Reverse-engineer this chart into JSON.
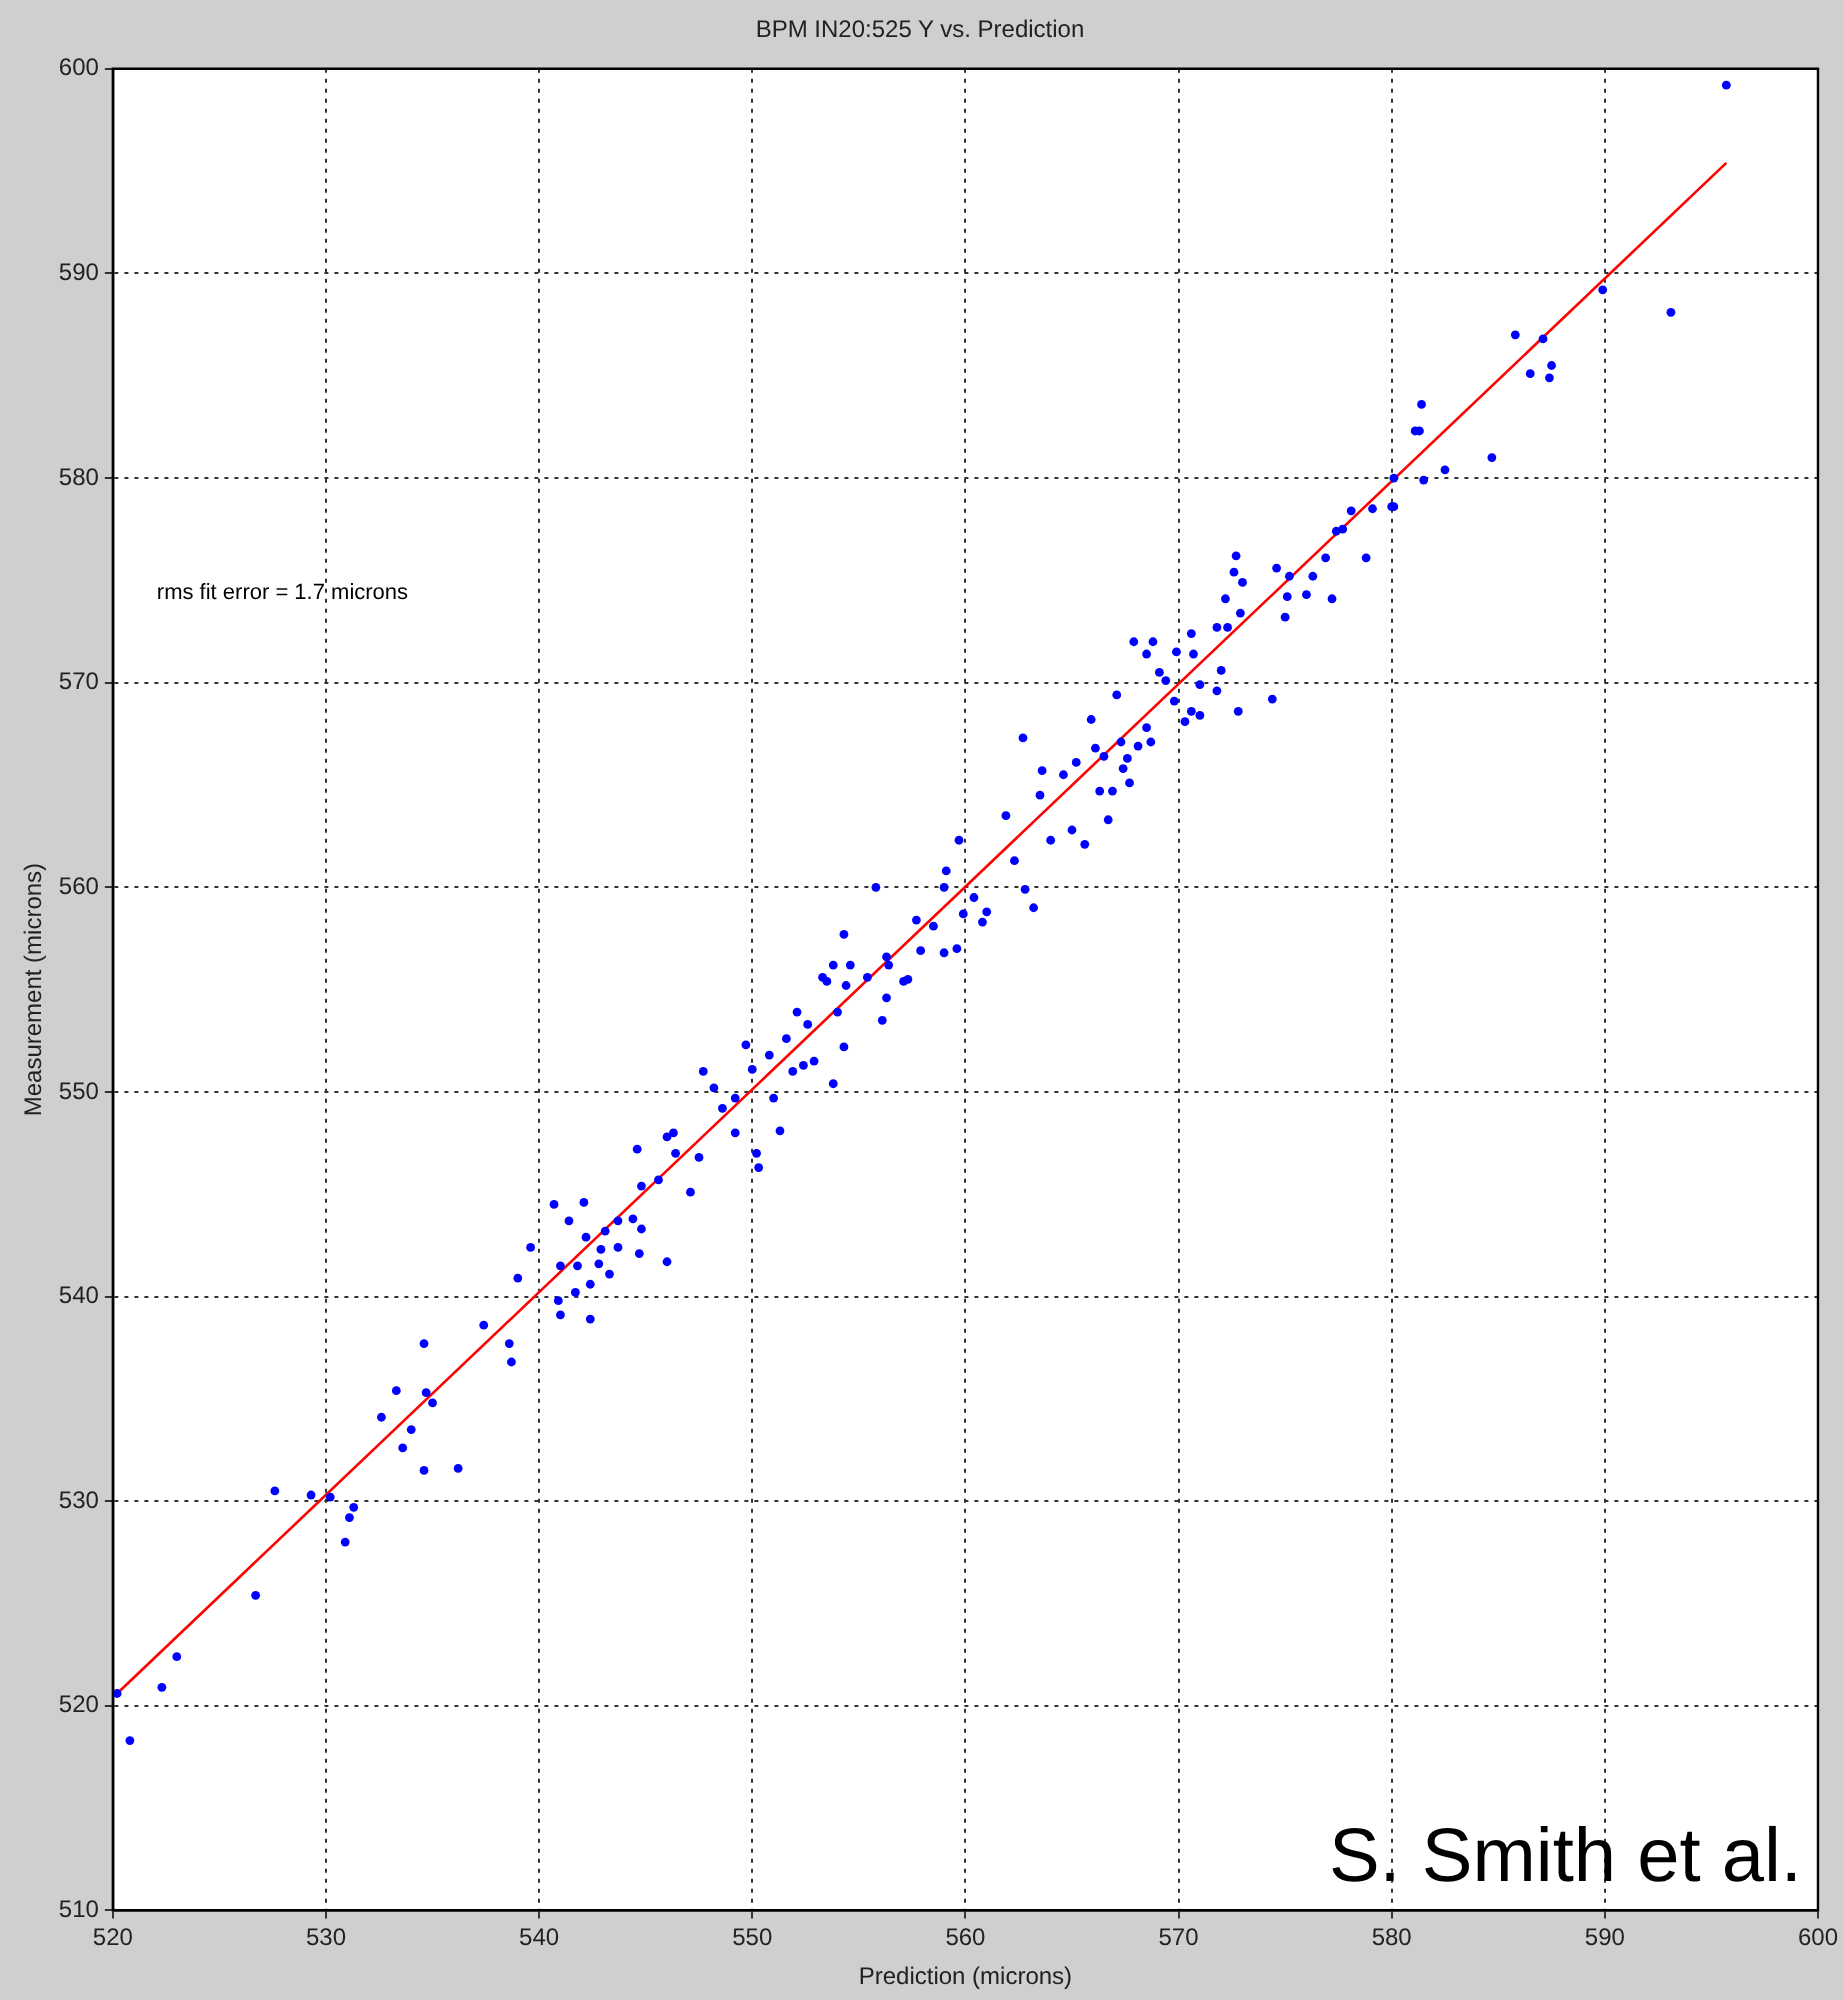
{
  "chart_data": {
    "type": "scatter",
    "title": "BPM IN20:525 Y vs. Prediction",
    "xlabel": "Prediction (microns)",
    "ylabel": "Measurement (microns)",
    "xlim": [
      520,
      600
    ],
    "ylim": [
      510,
      600
    ],
    "xticks": [
      520,
      530,
      540,
      550,
      560,
      570,
      580,
      590,
      600
    ],
    "yticks": [
      510,
      520,
      530,
      540,
      550,
      560,
      570,
      580,
      590,
      600
    ],
    "grid": true,
    "marker": "circle",
    "legend": false,
    "annotations": [
      "rms fit error = 1.7 microns",
      "S. Smith et al."
    ],
    "series": [
      {
        "color": "#0000ff",
        "x": [
          520.2,
          520.8,
          522.3,
          523.0,
          526.7,
          527.6,
          529.3,
          530.2,
          530.9,
          531.1,
          531.3,
          532.6,
          533.3,
          533.6,
          534.0,
          534.6,
          534.6,
          534.7,
          535.0,
          536.2,
          537.4,
          538.6,
          538.7,
          539.0,
          539.6,
          540.7,
          540.9,
          541.0,
          541.0,
          541.4,
          541.7,
          541.8,
          542.1,
          542.2,
          542.4,
          542.4,
          542.8,
          542.9,
          543.1,
          543.3,
          543.7,
          543.7,
          544.4,
          544.7,
          544.8,
          544.8,
          546.0,
          547.1,
          545.6,
          544.6,
          546.0,
          546.3,
          546.4,
          547.5,
          547.7,
          548.2,
          548.6,
          549.2,
          549.2,
          549.7,
          550.0,
          550.2,
          550.3,
          550.8,
          551.0,
          551.3,
          551.6,
          551.9,
          552.1,
          552.4,
          552.6,
          552.9,
          553.3,
          553.5,
          553.8,
          553.8,
          554.0,
          554.3,
          554.4,
          554.6,
          554.3,
          555.4,
          555.8,
          556.1,
          556.3,
          556.3,
          556.4,
          557.1,
          557.3,
          557.7,
          557.9,
          558.5,
          559.0,
          559.0,
          559.1,
          559.6,
          559.7,
          559.9,
          560.4,
          560.8,
          561.0,
          561.9,
          562.3,
          562.7,
          562.8,
          563.2,
          563.5,
          563.6,
          564.0,
          564.6,
          565.0,
          565.2,
          565.6,
          565.9,
          566.1,
          566.3,
          566.5,
          566.7,
          566.9,
          567.1,
          567.3,
          567.4,
          567.6,
          567.7,
          567.9,
          568.1,
          568.5,
          568.5,
          568.7,
          568.8,
          569.1,
          569.4,
          569.8,
          569.9,
          570.3,
          570.6,
          570.6,
          570.7,
          571.0,
          571.0,
          571.8,
          571.8,
          572.0,
          572.2,
          572.3,
          572.6,
          572.7,
          572.8,
          572.9,
          573.0,
          574.4,
          574.6,
          575.0,
          575.1,
          575.2,
          576.0,
          576.3,
          576.9,
          577.2,
          577.4,
          577.7,
          578.1,
          578.8,
          579.1,
          580.0,
          580.1,
          580.1,
          581.1,
          581.3,
          581.4,
          581.5,
          582.5,
          584.7,
          585.8,
          586.5,
          587.1,
          587.4,
          587.5,
          589.9,
          593.1,
          595.7
        ],
        "values": [
          520.6,
          518.3,
          520.9,
          522.4,
          525.4,
          530.5,
          530.3,
          530.2,
          528.0,
          529.2,
          529.7,
          534.1,
          535.4,
          532.6,
          533.5,
          531.5,
          537.7,
          535.3,
          534.8,
          531.6,
          538.6,
          537.7,
          536.8,
          540.9,
          542.4,
          544.5,
          539.8,
          541.5,
          539.1,
          543.7,
          540.2,
          541.5,
          544.6,
          542.9,
          538.9,
          540.6,
          541.6,
          542.3,
          543.2,
          541.1,
          543.7,
          542.4,
          543.8,
          542.1,
          543.3,
          545.4,
          541.7,
          545.1,
          545.7,
          547.2,
          547.8,
          548.0,
          547.0,
          546.8,
          551.0,
          550.2,
          549.2,
          548.0,
          549.7,
          552.3,
          551.1,
          547.0,
          546.3,
          551.8,
          549.7,
          548.1,
          552.6,
          551.0,
          553.9,
          551.3,
          553.3,
          551.5,
          555.6,
          555.4,
          550.4,
          556.2,
          553.9,
          552.2,
          555.2,
          556.2,
          557.7,
          555.6,
          560.0,
          553.5,
          554.6,
          556.6,
          556.2,
          555.4,
          555.5,
          558.4,
          556.9,
          558.1,
          560.0,
          556.8,
          560.8,
          557.0,
          562.3,
          558.7,
          559.5,
          558.3,
          558.8,
          563.5,
          561.3,
          567.3,
          559.9,
          559.0,
          564.5,
          565.7,
          562.3,
          565.5,
          562.8,
          566.1,
          562.1,
          568.2,
          566.8,
          564.7,
          566.4,
          563.3,
          564.7,
          569.4,
          567.1,
          565.8,
          566.3,
          565.1,
          572.0,
          566.9,
          571.4,
          567.8,
          567.1,
          572.0,
          570.5,
          570.1,
          569.1,
          571.5,
          568.1,
          572.4,
          568.6,
          571.4,
          569.9,
          568.4,
          569.6,
          572.7,
          570.6,
          574.1,
          572.7,
          575.4,
          576.2,
          568.6,
          573.4,
          574.9,
          569.2,
          575.6,
          573.2,
          574.2,
          575.2,
          574.3,
          575.2,
          576.1,
          574.1,
          577.4,
          577.5,
          578.4,
          576.1,
          578.5,
          578.6,
          580.0,
          578.6,
          582.3,
          582.3,
          583.6,
          579.9,
          580.4,
          581.0,
          587.0,
          585.1,
          586.8,
          584.9,
          585.5,
          589.2,
          588.1,
          599.2
        ]
      },
      {
        "type": "line",
        "color": "#ff0000",
        "marker": "none",
        "x": [
          520.2,
          595.7
        ],
        "values": [
          520.6,
          595.4
        ]
      }
    ]
  }
}
